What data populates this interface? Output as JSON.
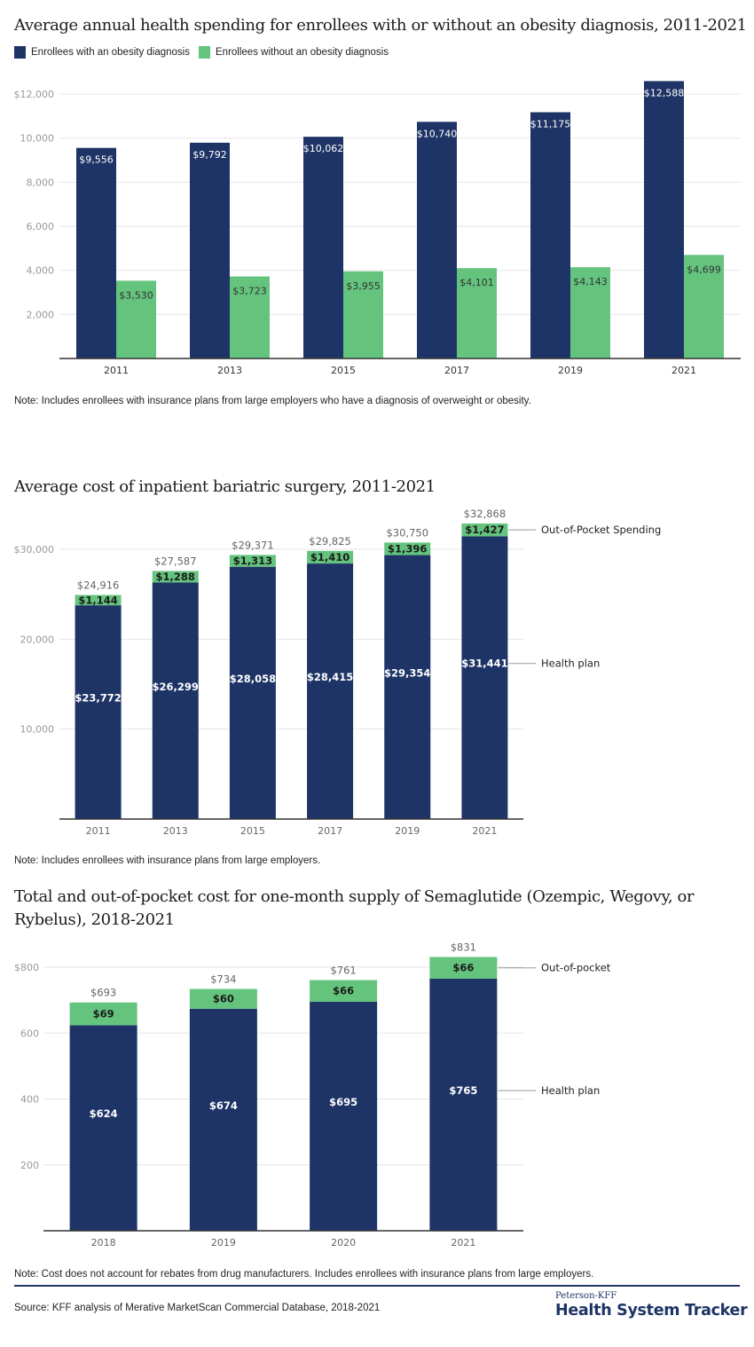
{
  "colors": {
    "navy": "#1f3466",
    "green": "#64c47e",
    "grid": "#e6e6e6",
    "axis": "#333333",
    "tick_text": "#999999",
    "total_text": "#666666"
  },
  "charts": [
    {
      "title": "Average annual health spending for enrollees with or without an obesity diagnosis, 2011-2021",
      "note": "Note: Includes enrollees with insurance plans from large employers who have a diagnosis of overweight or obesity."
    },
    {
      "title": "Average cost of inpatient bariatric surgery, 2011-2021",
      "note": "Note: Includes enrollees with insurance plans from large employers."
    },
    {
      "title": "Total and out-of-pocket cost for one-month supply of Semaglutide (Ozempic, Wegovy, or Rybelus), 2018-2021",
      "note": "Note: Cost does not account for rebates from drug manufacturers.  Includes enrollees with insurance plans from large employers."
    }
  ],
  "footer": {
    "source": "Source: KFF analysis of Merative MarketScan Commercial Database, 2018-2021",
    "brand_small": "Peterson-KFF",
    "brand_big": "Health System Tracker"
  },
  "chart_data": [
    {
      "type": "bar",
      "title": "Average annual health spending for enrollees with or without an obesity diagnosis, 2011-2021",
      "categories": [
        "2011",
        "2013",
        "2015",
        "2017",
        "2019",
        "2021"
      ],
      "series": [
        {
          "name": "Enrollees with an obesity diagnosis",
          "color": "#1f3466",
          "values": [
            9556,
            9792,
            10062,
            10740,
            11175,
            12588
          ],
          "labels": [
            "$9,556",
            "$9,792",
            "$10,062",
            "$10,740",
            "$11,175",
            "$12,588"
          ]
        },
        {
          "name": "Enrollees without an obesity diagnosis",
          "color": "#64c47e",
          "values": [
            3530,
            3723,
            3955,
            4101,
            4143,
            4699
          ],
          "labels": [
            "$3,530",
            "$3,723",
            "$3,955",
            "$4,101",
            "$4,143",
            "$4,699"
          ]
        }
      ],
      "yticks": [
        2000,
        4000,
        6000,
        8000,
        10000,
        12000
      ],
      "ytick_labels": [
        "2,000",
        "4,000",
        "6,000",
        "8,000",
        "10,000",
        "$12,000"
      ],
      "ylim": [
        0,
        12600
      ],
      "xlabel": "",
      "ylabel": "",
      "legend": "top-left",
      "grid": true
    },
    {
      "type": "bar",
      "stacked": true,
      "title": "Average cost of inpatient bariatric surgery, 2011-2021",
      "categories": [
        "2011",
        "2013",
        "2015",
        "2017",
        "2019",
        "2021"
      ],
      "series": [
        {
          "name": "Health plan",
          "color": "#1f3466",
          "values": [
            23772,
            26299,
            28058,
            28415,
            29354,
            31441
          ],
          "labels": [
            "$23,772",
            "$26,299",
            "$28,058",
            "$28,415",
            "$29,354",
            "$31,441"
          ]
        },
        {
          "name": "Out-of-Pocket Spending",
          "color": "#64c47e",
          "values": [
            1144,
            1288,
            1313,
            1410,
            1396,
            1427
          ],
          "labels": [
            "$1,144",
            "$1,288",
            "$1,313",
            "$1,410",
            "$1,396",
            "$1,427"
          ]
        }
      ],
      "totals": [
        "$24,916",
        "$27,587",
        "$29,371",
        "$29,825",
        "$30,750",
        "$32,868"
      ],
      "yticks": [
        10000,
        20000,
        30000
      ],
      "ytick_labels": [
        "10,000",
        "20,000",
        "$30,000"
      ],
      "ylim": [
        0,
        30000
      ],
      "xlabel": "",
      "ylabel": "",
      "legend": "right (direct labels on last bar)",
      "grid": true
    },
    {
      "type": "bar",
      "stacked": true,
      "title": "Total and out-of-pocket cost for one-month supply of Semaglutide (Ozempic, Wegovy, or Rybelus), 2018-2021",
      "categories": [
        "2018",
        "2019",
        "2020",
        "2021"
      ],
      "series": [
        {
          "name": "Health plan",
          "color": "#1f3466",
          "values": [
            624,
            674,
            695,
            765
          ],
          "labels": [
            "$624",
            "$674",
            "$695",
            "$765"
          ]
        },
        {
          "name": "Out-of-pocket",
          "color": "#64c47e",
          "values": [
            69,
            60,
            66,
            66
          ],
          "labels": [
            "$69",
            "$60",
            "$66",
            "$66"
          ]
        }
      ],
      "totals": [
        "$693",
        "$734",
        "$761",
        "$831"
      ],
      "yticks": [
        200,
        400,
        600,
        800
      ],
      "ytick_labels": [
        "200",
        "400",
        "600",
        "$800"
      ],
      "ylim": [
        0,
        800
      ],
      "xlabel": "",
      "ylabel": "",
      "legend": "right (direct labels on last bar)",
      "grid": true
    }
  ]
}
